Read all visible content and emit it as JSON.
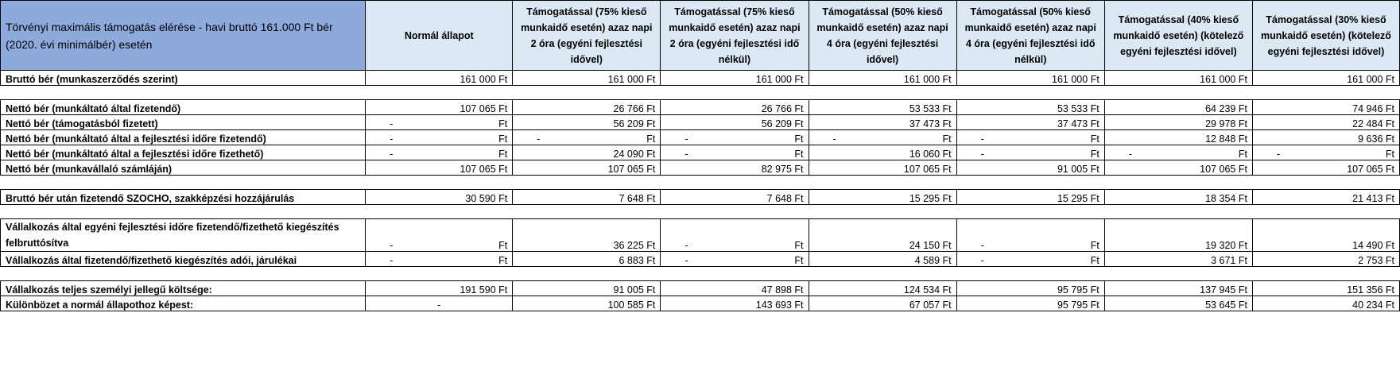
{
  "header": {
    "corner": "Törvényi maximális támogatás elérése - havi bruttó 161.000 Ft bér (2020. évi minimálbér) esetén",
    "columns": [
      "Normál állapot",
      "Támogatással (75% kieső munkaidő esetén) azaz napi 2 óra (egyéni fejlesztési idővel)",
      "Támogatással (75% kieső munkaidő esetén) azaz napi 2 óra (egyéni fejlesztési idő nélkül)",
      "Támogatással (50% kieső munkaidő esetén) azaz napi 4 óra (egyéni fejlesztési idővel)",
      "Támogatással (50% kieső munkaidő esetén) azaz napi 4 óra (egyéni fejlesztési idő nélkül)",
      "Támogatással (40% kieső munkaidő esetén) (kötelező egyéni fejlesztési idővel)",
      "Támogatással (30% kieső munkaidő esetén) (kötelező egyéni fejlesztési idővel)"
    ]
  },
  "rows": {
    "brutto": {
      "label": "Bruttó bér (munkaszerződés szerint)",
      "values": [
        "161 000 Ft",
        "161 000 Ft",
        "161 000 Ft",
        "161 000 Ft",
        "161 000 Ft",
        "161 000 Ft",
        "161 000 Ft"
      ]
    },
    "netto_munkaltato": {
      "label": "Nettó bér (munkáltató által fizetendő)",
      "values": [
        "107 065 Ft",
        "26 766 Ft",
        "26 766 Ft",
        "53 533 Ft",
        "53 533 Ft",
        "64 239 Ft",
        "74 946 Ft"
      ]
    },
    "netto_tamogatas": {
      "label": "Nettó bér (támogatásból fizetett)",
      "values": [
        "-",
        "56 209 Ft",
        "56 209 Ft",
        "37 473 Ft",
        "37 473 Ft",
        "29 978 Ft",
        "22 484 Ft"
      ]
    },
    "netto_fejl_fizetendo": {
      "label": "Nettó bér (munkáltató által a fejlesztési időre fizetendő)",
      "values": [
        "-",
        "-",
        "-",
        "-",
        "-",
        "12 848 Ft",
        "9 636 Ft"
      ]
    },
    "netto_fejl_fizetheto": {
      "label": "Nettó bér (munkáltató által a fejlesztési időre fizethető)",
      "values": [
        "-",
        "24 090 Ft",
        "-",
        "16 060 Ft",
        "-",
        "-",
        "-"
      ]
    },
    "netto_szamla": {
      "label": "Nettó bér (munkavállaló számláján)",
      "values": [
        "107 065 Ft",
        "107 065 Ft",
        "82 975 Ft",
        "107 065 Ft",
        "91 005 Ft",
        "107 065 Ft",
        "107 065 Ft"
      ]
    },
    "szocho": {
      "label": "Bruttó bér után fizetendő SZOCHO, szakképzési hozzájárulás",
      "values": [
        "30 590 Ft",
        "7 648 Ft",
        "7 648 Ft",
        "15 295 Ft",
        "15 295 Ft",
        "18 354 Ft",
        "21 413 Ft"
      ]
    },
    "kiegeszites": {
      "label": "Vállalkozás által egyéni fejlesztési időre fizetendő/fizethető kiegészítés felbruttósítva",
      "values": [
        "-",
        "36 225 Ft",
        "-",
        "24 150 Ft",
        "-",
        "19 320 Ft",
        "14 490 Ft"
      ]
    },
    "kiegeszites_adoi": {
      "label": "Vállalkozás által fizetendő/fizethető kiegészítés adói, járulékai",
      "values": [
        "-",
        "6 883 Ft",
        "-",
        "4 589 Ft",
        "-",
        "3 671 Ft",
        "2 753 Ft"
      ]
    },
    "teljes": {
      "label": "Vállalkozás teljes személyi jellegű költsége:",
      "values": [
        "191 590 Ft",
        "91 005 Ft",
        "47 898 Ft",
        "124 534 Ft",
        "95 795 Ft",
        "137 945 Ft",
        "151 356 Ft"
      ]
    },
    "kulonbozet": {
      "label": "Különbözet a normál állapothoz képest:",
      "values": [
        "-",
        "100 585 Ft",
        "143 693 Ft",
        "67 057 Ft",
        "95 795 Ft",
        "53 645 Ft",
        "40 234 Ft"
      ]
    }
  },
  "dash_unit": "Ft",
  "colors": {
    "header_corner": "#8ea9db",
    "header_cells": "#dce9f5"
  }
}
